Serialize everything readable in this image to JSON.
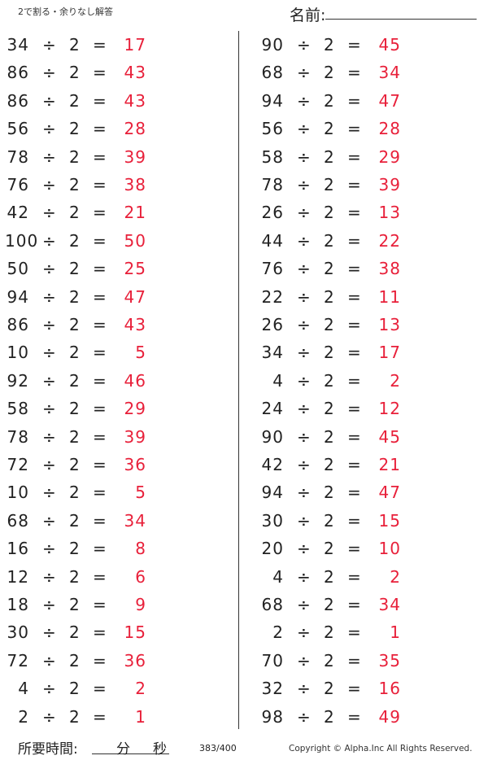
{
  "header": {
    "title": "2で割る・余りなし解答",
    "name_label": "名前:"
  },
  "operator": "÷",
  "divisor": "2",
  "equals": "=",
  "answer_color": "#e8203a",
  "left": [
    [
      "34",
      "17"
    ],
    [
      "86",
      "43"
    ],
    [
      "86",
      "43"
    ],
    [
      "56",
      "28"
    ],
    [
      "78",
      "39"
    ],
    [
      "76",
      "38"
    ],
    [
      "42",
      "21"
    ],
    [
      "100",
      "50"
    ],
    [
      "50",
      "25"
    ],
    [
      "94",
      "47"
    ],
    [
      "86",
      "43"
    ],
    [
      "10",
      "5"
    ],
    [
      "92",
      "46"
    ],
    [
      "58",
      "29"
    ],
    [
      "78",
      "39"
    ],
    [
      "72",
      "36"
    ],
    [
      "10",
      "5"
    ],
    [
      "68",
      "34"
    ],
    [
      "16",
      "8"
    ],
    [
      "12",
      "6"
    ],
    [
      "18",
      "9"
    ],
    [
      "30",
      "15"
    ],
    [
      "72",
      "36"
    ],
    [
      "4",
      "2"
    ],
    [
      "2",
      "1"
    ]
  ],
  "right": [
    [
      "90",
      "45"
    ],
    [
      "68",
      "34"
    ],
    [
      "94",
      "47"
    ],
    [
      "56",
      "28"
    ],
    [
      "58",
      "29"
    ],
    [
      "78",
      "39"
    ],
    [
      "26",
      "13"
    ],
    [
      "44",
      "22"
    ],
    [
      "76",
      "38"
    ],
    [
      "22",
      "11"
    ],
    [
      "26",
      "13"
    ],
    [
      "34",
      "17"
    ],
    [
      "4",
      "2"
    ],
    [
      "24",
      "12"
    ],
    [
      "90",
      "45"
    ],
    [
      "42",
      "21"
    ],
    [
      "94",
      "47"
    ],
    [
      "30",
      "15"
    ],
    [
      "20",
      "10"
    ],
    [
      "4",
      "2"
    ],
    [
      "68",
      "34"
    ],
    [
      "2",
      "1"
    ],
    [
      "70",
      "35"
    ],
    [
      "32",
      "16"
    ],
    [
      "98",
      "49"
    ]
  ],
  "footer": {
    "time_label": "所要時間:",
    "minutes": "分",
    "seconds": "秒",
    "page": "383/400",
    "copyright": "Copyright ©  Alpha.Inc All Rights Reserved."
  }
}
